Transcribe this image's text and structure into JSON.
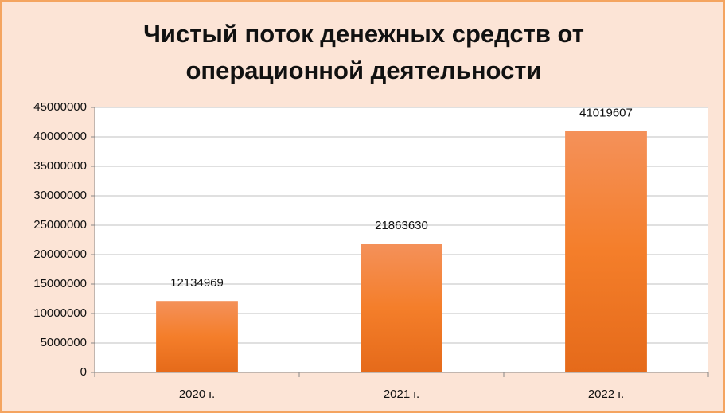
{
  "chart_data": {
    "type": "bar",
    "title": "Чистый поток денежных средств от операционной деятельности",
    "categories": [
      "2020 г.",
      "2021 г.",
      "2022 г."
    ],
    "values": [
      12134969,
      21863630,
      41019607
    ],
    "color": "#f47e2a",
    "ylim": [
      0,
      45000000
    ],
    "yticks": [
      0,
      5000000,
      10000000,
      15000000,
      20000000,
      25000000,
      30000000,
      35000000,
      40000000,
      45000000
    ],
    "grid": true
  }
}
